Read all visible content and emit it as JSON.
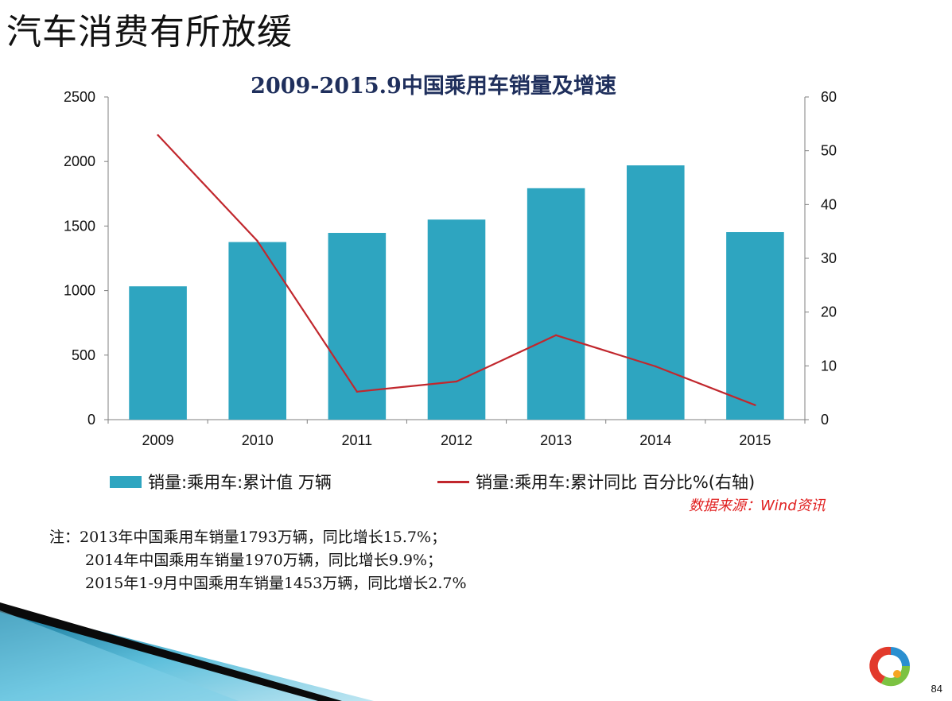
{
  "slide": {
    "title": "汽车消费有所放缓",
    "page_number": "84"
  },
  "chart_data": {
    "type": "bar",
    "title": "2009-2015.9中国乘用车销量及增速",
    "categories": [
      "2009",
      "2010",
      "2011",
      "2012",
      "2013",
      "2014",
      "2015"
    ],
    "series": [
      {
        "name": "销量:乘用车:累计值 万辆",
        "type": "bar",
        "axis": "left",
        "color": "#2ea5c0",
        "values": [
          1033,
          1376,
          1447,
          1550,
          1793,
          1970,
          1453
        ]
      },
      {
        "name": "销量:乘用车:累计同比 百分比%(右轴)",
        "type": "line",
        "axis": "right",
        "color": "#c1272d",
        "values": [
          52.9,
          33.2,
          5.2,
          7.1,
          15.7,
          9.9,
          2.7
        ]
      }
    ],
    "y_left": {
      "ticks": [
        "0",
        "500",
        "1000",
        "1500",
        "2000",
        "2500"
      ],
      "range": [
        0,
        2500
      ]
    },
    "y_right": {
      "ticks": [
        "0",
        "10",
        "20",
        "30",
        "40",
        "50",
        "60"
      ],
      "range": [
        0,
        60
      ]
    },
    "grid": false,
    "legend_position": "bottom"
  },
  "source_note": "数据来源：Wind资讯",
  "notes": [
    "注：2013年中国乘用车销量1793万辆，同比增长15.7%；",
    "2014年中国乘用车销量1970万辆，同比增长9.9%；",
    "2015年1-9月中国乘用车销量1453万辆，同比增长2.7%"
  ]
}
